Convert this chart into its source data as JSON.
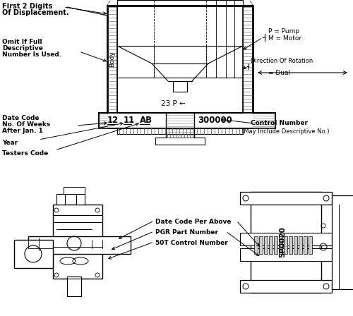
{
  "bg_color": "#ffffff",
  "line_color": "#000000",
  "text_color": "#000000",
  "annotations": {
    "top_left_title1": "First 2 Digits",
    "top_left_title2": "Of Displacement.",
    "omit_line1": "Omit If Full",
    "omit_line2": "Descriptive",
    "omit_line3": "Number Is Used.",
    "body_label": "Body",
    "label_23p": "23 P",
    "label_arrow": "←",
    "plate_12": "12",
    "plate_11": "11",
    "plate_ab": "AB",
    "plate_300000": "300000",
    "date_code_line1": "Date Code",
    "date_code_line2": "No. Of Weeks",
    "date_code_line3": "After Jan. 1",
    "year_label": "Year",
    "testers_label": "Testers Code",
    "p_pump": "P = Pump",
    "m_motor": "M = Motor",
    "dir_rotation": "Direction Of Rotation",
    "dual_label": "= Dual",
    "control_num_line1": "Control Number",
    "control_num_line2": "(May Include Descriptive No.)",
    "date_code_per_above": "Date Code Per Above",
    "pgr_part": "PGR Part Number",
    "control_50t": "50T Control Number",
    "right_part_label": "5P0020"
  }
}
